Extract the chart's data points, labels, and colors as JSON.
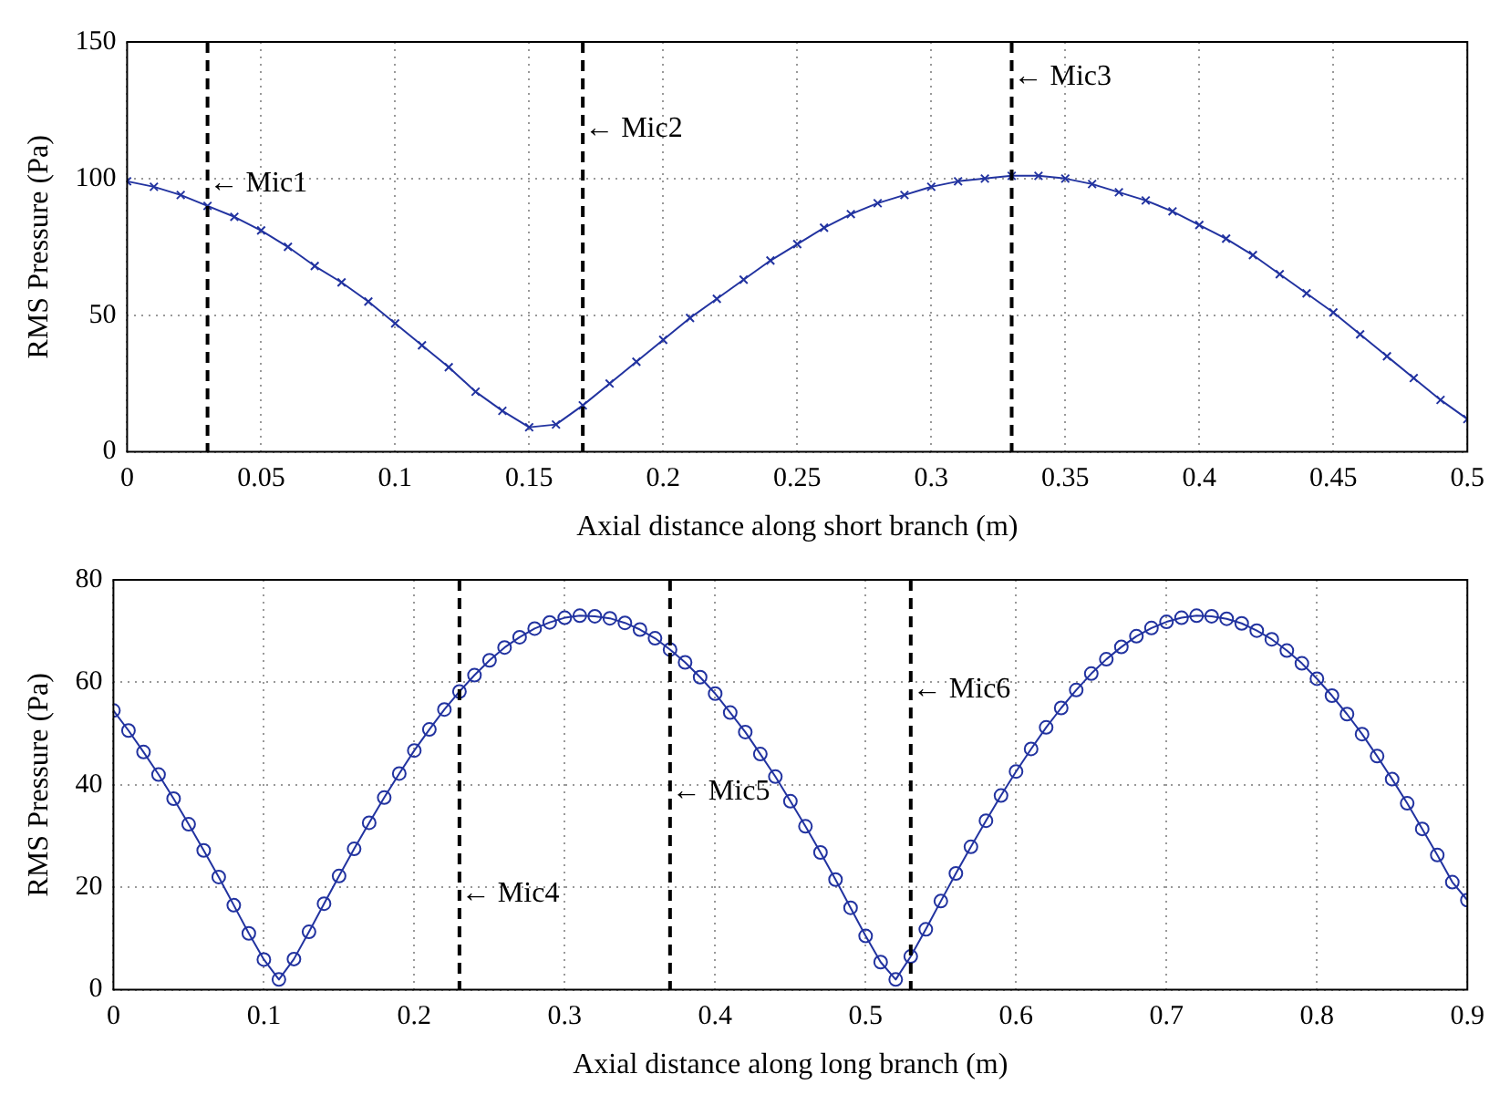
{
  "chart_data": [
    {
      "type": "line",
      "xlabel": "Axial distance along short branch (m)",
      "ylabel": "RMS Pressure (Pa)",
      "xlim": [
        0,
        0.5
      ],
      "ylim": [
        0,
        150
      ],
      "xticks": [
        0,
        0.05,
        0.1,
        0.15,
        0.2,
        0.25,
        0.3,
        0.35,
        0.4,
        0.45,
        0.5
      ],
      "yticks": [
        0,
        50,
        100,
        150
      ],
      "grid": true,
      "legend": false,
      "marker": "cross",
      "line_style": "solid",
      "x": [
        0,
        0.01,
        0.02,
        0.03,
        0.04,
        0.05,
        0.06,
        0.07,
        0.08,
        0.09,
        0.1,
        0.11,
        0.12,
        0.13,
        0.14,
        0.15,
        0.16,
        0.17,
        0.18,
        0.19,
        0.2,
        0.21,
        0.22,
        0.23,
        0.24,
        0.25,
        0.26,
        0.27,
        0.28,
        0.29,
        0.3,
        0.31,
        0.32,
        0.33,
        0.34,
        0.35,
        0.36,
        0.37,
        0.38,
        0.39,
        0.4,
        0.41,
        0.42,
        0.43,
        0.44,
        0.45,
        0.46,
        0.47,
        0.48,
        0.49,
        0.5
      ],
      "series": [
        {
          "color": "#2233a0",
          "values": [
            99,
            97,
            94,
            90,
            86,
            81,
            75,
            68,
            62,
            55,
            47,
            39,
            31,
            22,
            15,
            9,
            10,
            17,
            25,
            33,
            41,
            49,
            56,
            63,
            70,
            76,
            82,
            87,
            91,
            94,
            97,
            99,
            100,
            101,
            101,
            100,
            98,
            95,
            92,
            88,
            83,
            78,
            72,
            65,
            58,
            51,
            43,
            35,
            27,
            19,
            12
          ]
        }
      ],
      "ref_lines": [
        {
          "axis": "x",
          "value": 0.03,
          "color": "#000000",
          "line_style": "dashed"
        },
        {
          "axis": "x",
          "value": 0.17,
          "color": "#000000",
          "line_style": "dashed"
        },
        {
          "axis": "x",
          "value": 0.33,
          "color": "#000000",
          "line_style": "dashed"
        }
      ],
      "annotations": [
        {
          "text": "← Mic1",
          "x": 0.03,
          "y": 98
        },
        {
          "text": "← Mic2",
          "x": 0.17,
          "y": 118
        },
        {
          "text": "← Mic3",
          "x": 0.33,
          "y": 137
        }
      ]
    },
    {
      "type": "line",
      "xlabel": "Axial distance along long branch (m)",
      "ylabel": "RMS Pressure (Pa)",
      "xlim": [
        0,
        0.9
      ],
      "ylim": [
        0,
        80
      ],
      "xticks": [
        0,
        0.1,
        0.2,
        0.3,
        0.4,
        0.5,
        0.6,
        0.7,
        0.8,
        0.9
      ],
      "yticks": [
        0,
        20,
        40,
        60,
        80
      ],
      "grid": true,
      "legend": false,
      "marker": "circle",
      "line_style": "solid",
      "x": [
        0,
        0.01,
        0.02,
        0.03,
        0.04,
        0.05,
        0.06,
        0.07,
        0.08,
        0.09,
        0.1,
        0.11,
        0.12,
        0.13,
        0.14,
        0.15,
        0.16,
        0.17,
        0.18,
        0.19,
        0.2,
        0.21,
        0.22,
        0.23,
        0.24,
        0.25,
        0.26,
        0.27,
        0.28,
        0.29,
        0.3,
        0.31,
        0.32,
        0.33,
        0.34,
        0.35,
        0.36,
        0.37,
        0.38,
        0.39,
        0.4,
        0.41,
        0.42,
        0.43,
        0.44,
        0.45,
        0.46,
        0.47,
        0.48,
        0.49,
        0.5,
        0.51,
        0.52,
        0.53,
        0.54,
        0.55,
        0.56,
        0.57,
        0.58,
        0.59,
        0.6,
        0.61,
        0.62,
        0.63,
        0.64,
        0.65,
        0.66,
        0.67,
        0.68,
        0.69,
        0.7,
        0.71,
        0.72,
        0.73,
        0.74,
        0.75,
        0.76,
        0.77,
        0.78,
        0.79,
        0.8,
        0.81,
        0.82,
        0.83,
        0.84,
        0.85,
        0.86,
        0.87,
        0.88,
        0.89,
        0.9
      ],
      "series": [
        {
          "color": "#2233a0",
          "values": [
            54.5,
            50.6,
            46.4,
            42,
            37.3,
            32.3,
            27.2,
            22,
            16.5,
            11,
            5.9,
            2,
            6,
            11.3,
            16.8,
            22.2,
            27.5,
            32.6,
            37.5,
            42.2,
            46.7,
            50.8,
            54.7,
            58.2,
            61.4,
            64.3,
            66.8,
            68.8,
            70.5,
            71.7,
            72.6,
            73,
            72.9,
            72.5,
            71.6,
            70.3,
            68.6,
            66.4,
            63.9,
            61,
            57.8,
            54.1,
            50.3,
            46,
            41.6,
            36.8,
            31.9,
            26.8,
            21.5,
            16,
            10.5,
            5.4,
            2,
            6.5,
            11.8,
            17.3,
            22.7,
            27.9,
            33,
            37.9,
            42.6,
            47,
            51.2,
            55,
            58.5,
            61.7,
            64.5,
            66.9,
            69,
            70.6,
            71.8,
            72.6,
            73,
            72.9,
            72.4,
            71.5,
            70.1,
            68.4,
            66.2,
            63.7,
            60.7,
            57.4,
            53.8,
            49.9,
            45.6,
            41.1,
            36.4,
            31.4,
            26.3,
            21,
            17.5
          ]
        }
      ],
      "ref_lines": [
        {
          "axis": "x",
          "value": 0.23,
          "color": "#000000",
          "line_style": "dashed"
        },
        {
          "axis": "x",
          "value": 0.37,
          "color": "#000000",
          "line_style": "dashed"
        },
        {
          "axis": "x",
          "value": 0.53,
          "color": "#000000",
          "line_style": "dashed"
        }
      ],
      "annotations": [
        {
          "text": "← Mic4",
          "x": 0.23,
          "y": 18.7
        },
        {
          "text": "← Mic5",
          "x": 0.37,
          "y": 38.6
        },
        {
          "text": "← Mic6",
          "x": 0.53,
          "y": 58.5
        }
      ]
    }
  ]
}
